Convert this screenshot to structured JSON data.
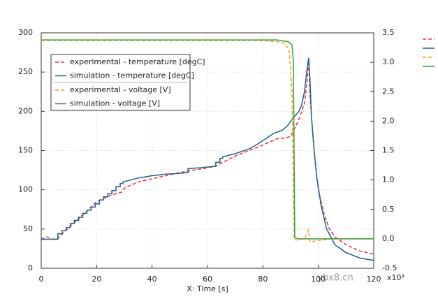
{
  "chart_data": {
    "type": "line",
    "x_label": "X: Time [s]",
    "x_scale_label": "x10³",
    "xlim": [
      0,
      120
    ],
    "xticks": [
      0,
      20,
      40,
      60,
      80,
      100,
      120
    ],
    "ylim": [
      0,
      300
    ],
    "yticks": [
      0,
      50,
      100,
      150,
      200,
      250,
      300
    ],
    "y2lim": [
      -0.5,
      3.5
    ],
    "y2ticks": [
      -0.5,
      {
        "value": 0,
        "label": "0.0"
      },
      0.5,
      {
        "value": 1,
        "label": "1.0"
      },
      1.5,
      {
        "value": 2,
        "label": "2.0"
      },
      2.5,
      {
        "value": 3,
        "label": "3.0"
      },
      3.5
    ],
    "grid": true,
    "legend": "upper left",
    "watermark": "ybx8.cn",
    "series": [
      {
        "name": "experimental - temperature [degC]",
        "color": "#e0343a",
        "dash": true,
        "axis": "y",
        "x": [
          0,
          2,
          4,
          6,
          8,
          10,
          15,
          20,
          25,
          29,
          30,
          35,
          40,
          45,
          50,
          55,
          60,
          63,
          65,
          70,
          75,
          80,
          85,
          88,
          90,
          91,
          92,
          93,
          94,
          95,
          96,
          96.5,
          97,
          98,
          99,
          100,
          102,
          104,
          106,
          110,
          115,
          120
        ],
        "values": [
          37,
          40,
          37,
          38,
          45,
          52,
          68,
          85,
          93,
          97,
          102,
          110,
          114,
          118,
          122,
          125,
          128,
          130,
          134,
          143,
          150,
          157,
          165,
          166,
          168,
          175,
          182,
          190,
          200,
          210,
          240,
          268,
          220,
          170,
          130,
          100,
          70,
          50,
          40,
          30,
          22,
          18
        ]
      },
      {
        "name": "simulation - temperature [degC]",
        "color": "#1f5f8b",
        "dash": false,
        "axis": "y",
        "x": [
          0,
          6,
          6,
          7.5,
          7.5,
          9,
          9,
          10.5,
          10.5,
          12,
          12,
          13.5,
          13.5,
          15,
          15,
          16.5,
          16.5,
          18,
          18,
          19.5,
          19.5,
          21,
          21,
          22.5,
          22.5,
          24,
          24,
          25.5,
          25.5,
          27,
          27,
          28.5,
          28.5,
          29.5,
          29.5,
          35,
          40,
          45,
          50,
          53,
          53,
          57,
          60,
          63,
          63,
          64.5,
          64.5,
          65.5,
          65.5,
          70,
          75,
          78,
          81,
          84,
          87,
          89,
          91,
          92,
          93,
          94,
          95,
          95.8,
          96.5,
          97,
          97.5,
          98.5,
          99.5,
          101,
          103,
          106,
          110,
          115,
          120
        ],
        "values": [
          37,
          37,
          44,
          44,
          48,
          48,
          52,
          52,
          57,
          57,
          61,
          61,
          65,
          65,
          70,
          70,
          74,
          74,
          78,
          78,
          82,
          82,
          87,
          87,
          91,
          91,
          95,
          95,
          99,
          99,
          104,
          104,
          108,
          108,
          110,
          115,
          118,
          120,
          121,
          122,
          127,
          128,
          129,
          130,
          135,
          135,
          140,
          140,
          142,
          146,
          152,
          158,
          165,
          172,
          176,
          182,
          192,
          196,
          200,
          208,
          225,
          250,
          268,
          240,
          195,
          150,
          115,
          80,
          50,
          30,
          20,
          13,
          10
        ]
      },
      {
        "name": "experimental - voltage [V]",
        "color": "#f0a323",
        "dash": true,
        "axis": "y2",
        "x": [
          0,
          80,
          85,
          88,
          89.5,
          90.5,
          91.3,
          92,
          95,
          96.5,
          97,
          100,
          105,
          120
        ],
        "values": [
          3.37,
          3.37,
          3.35,
          3.32,
          3.2,
          2.5,
          0.0,
          -0.02,
          0.0,
          0.15,
          -0.05,
          -0.03,
          0,
          0
        ]
      },
      {
        "name": "simulation - voltage [V]",
        "color": "#3a9a3a",
        "dash": false,
        "axis": "y2",
        "x": [
          0,
          85,
          89,
          90.5,
          91,
          91.5,
          93,
          120
        ],
        "values": [
          3.38,
          3.38,
          3.35,
          3.3,
          3.0,
          0.02,
          0,
          0
        ]
      }
    ]
  }
}
